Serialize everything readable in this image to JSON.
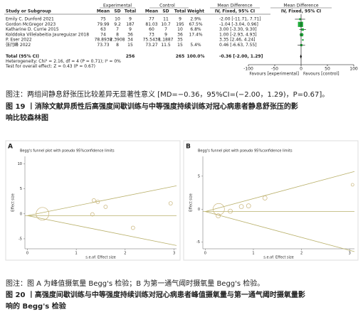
{
  "forest": {
    "group_headers": [
      "Experimental",
      "Control",
      "Mean Difference",
      "Mean Difference"
    ],
    "columns": [
      "Study or Subgroup",
      "Mean",
      "SD",
      "Total",
      "Mean",
      "SD",
      "Total",
      "Weight",
      "IV, Fixed, 95% CI",
      "IV, Fixed, 95% CI"
    ],
    "rows": [
      {
        "study": "Emily C. Dunford 2021",
        "cells": [
          "75",
          "10",
          "9",
          "77",
          "11",
          "9",
          "2.9%",
          "-2.00 [-11.71, 7.71]"
        ],
        "md": -2.0,
        "lo": -11.71,
        "hi": 7.71
      },
      {
        "study": "Gordon McGregor 2023",
        "cells": [
          "79.99",
          "9.2",
          "187",
          "81.03",
          "10.7",
          "195",
          "67.5%",
          "-1.04 [-3.04, 0.96]"
        ],
        "md": -1.04,
        "lo": -3.04,
        "hi": 0.96
      },
      {
        "study": "Katharine D. Currie 2015",
        "cells": [
          "63",
          "7",
          "9",
          "60",
          "7",
          "10",
          "6.8%",
          "3.00 [-3.30, 9.30]"
        ],
        "md": 3.0,
        "lo": -3.3,
        "hi": 9.3
      },
      {
        "study": "Kolddoka Villelabeitia Jaureguizar 2018",
        "cells": [
          "74",
          "8",
          "36",
          "73",
          "9",
          "36",
          "17.4%",
          "1.00 [-2.93, 4.93]"
        ],
        "md": 1.0,
        "lo": -2.93,
        "hi": 4.93
      },
      {
        "study": "P. Eser 2022",
        "cells": [
          "78.8938",
          "2.3908",
          "34",
          "75.5438",
          "1.1887",
          "35",
          null,
          "3.35 [2.46, 4.24]"
        ],
        "md": 3.35,
        "lo": 2.46,
        "hi": 4.24
      },
      {
        "study": "张闫峰 2022",
        "cells": [
          "73.73",
          "8",
          "15",
          "73.27",
          "11.5",
          "15",
          "5.4%",
          "0.46 [-6.63, 7.55]"
        ],
        "md": 0.46,
        "lo": -6.63,
        "hi": 7.55
      }
    ],
    "total": {
      "study": "Total (95% CI)",
      "cells": [
        null,
        null,
        "256",
        null,
        null,
        "265",
        "100.0%",
        "-0.36 [-2.00, 1.29]"
      ],
      "md": -0.36,
      "lo": -2.0,
      "hi": 1.29
    },
    "heterogeneity": "Heterogeneity: Chi² = 2.16, df = 4 (P = 0.71); I² = 0%",
    "overall_effect": "Test for overall effect: Z = 0.43 (P = 0.67)",
    "xlim": [
      -100,
      100
    ],
    "xticks": [
      -100,
      -50,
      0,
      50,
      100
    ],
    "favours_left": "Favours [experimental]",
    "favours_right": "Favours [control]"
  },
  "caption19_note": "图注：两组间静息舒张压比较差异无显著性意义 [MD=−0.36，95%CI=(−2.00，1.29)，P=0.67]。",
  "caption19": "图 19 丨消除文献异质性后高强度间歇训练与中等强度持续训练对冠心病患者静息舒张压的影响比较森林图",
  "funnels": [
    {
      "label": "A",
      "title": "Begg's funnel plot with pseudo 95%confidence limits",
      "ylabel": "Effect size",
      "xlabel": "s.e.of: Effect size",
      "center": -0.36,
      "xlim": [
        -0.05,
        3.05
      ],
      "xticks": [
        0,
        1,
        2,
        3
      ],
      "ylim": [
        -7,
        11.5
      ],
      "yticks": [
        -5,
        0,
        5,
        10
      ],
      "x": [
        0.31,
        1.36,
        1.44,
        1.6,
        1.33,
        2.16,
        2.93
      ],
      "y": [
        0,
        2.7,
        2.4,
        1.4,
        -0.1,
        -2.8,
        2.1
      ],
      "sizes": [
        9,
        2.5,
        2.5,
        2.5,
        2.5,
        2.5,
        2.5
      ]
    },
    {
      "label": "B",
      "title": "Begg's funnel plot with pseudo 95%confidence limits",
      "ylabel": "Effect size",
      "xlabel": "s.e.of: Effect size",
      "center": -0.36,
      "xlim": [
        -0.05,
        3.1
      ],
      "xticks": [
        0,
        1,
        2,
        3
      ],
      "ylim": [
        -6,
        8
      ],
      "yticks": [
        -5,
        0,
        5
      ],
      "x": [
        0.28,
        0.27,
        0.52,
        0.75,
        0.9,
        1.24,
        3.06
      ],
      "y": [
        0,
        -1.0,
        -0.3,
        0.4,
        0.5,
        1.7,
        3.7
      ],
      "sizes": [
        8,
        3,
        3,
        3,
        3,
        3,
        2
      ]
    }
  ],
  "caption20_note": "图注：图 A 为峰值摄氧量 Begg's 检验；B 为第一通气阈时摄氧量 Begg's 检验。",
  "caption20": "图 20 丨高强度间歇训练与中等强度持续训练对冠心病患者峰值摄氧量与第一通气阈时摄氧量影响的 Begg's 检验"
}
